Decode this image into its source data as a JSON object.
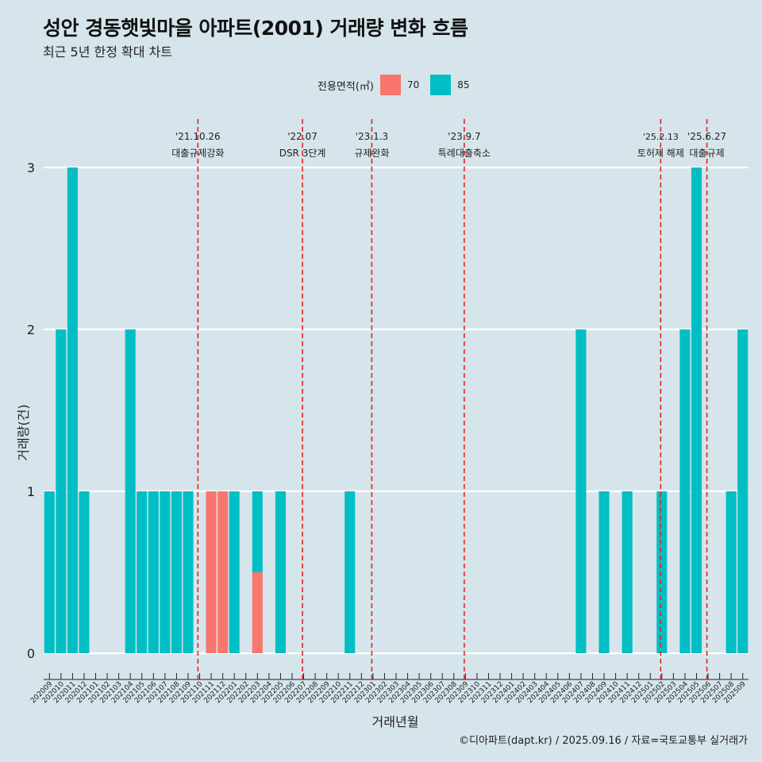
{
  "title": "성안 경동햇빛마을 아파트(2001) 거래량 변화 흐름",
  "subtitle": "최근 5년 한정 확대 차트",
  "legend": {
    "title": "전용면적(㎡)",
    "items": [
      {
        "label": "70",
        "color": "#f8766d"
      },
      {
        "label": "85",
        "color": "#00bfc4"
      }
    ]
  },
  "caption": "©디아파트(dapt.kr) / 2025.09.16 / 자료=국토교통부 실거래가",
  "colors": {
    "background": "#d6e4eb",
    "series70": "#f8766d",
    "series85": "#00bfc4",
    "event_line": "#e8231a"
  },
  "chart_data": {
    "type": "bar",
    "stacked": true,
    "xlabel": "거래년월",
    "ylabel": "거래량(건)",
    "ylim": [
      0,
      3
    ],
    "yticks": [
      0,
      1,
      2,
      3
    ],
    "grid": "horizontal",
    "legend_position": "top",
    "categories": [
      "202009",
      "202010",
      "202011",
      "202012",
      "202101",
      "202102",
      "202103",
      "202104",
      "202105",
      "202106",
      "202107",
      "202108",
      "202109",
      "202110",
      "202111",
      "202112",
      "202201",
      "202202",
      "202203",
      "202204",
      "202205",
      "202206",
      "202207",
      "202208",
      "202209",
      "202210",
      "202211",
      "202212",
      "202301",
      "202302",
      "202303",
      "202304",
      "202305",
      "202306",
      "202307",
      "202308",
      "202309",
      "202310",
      "202311",
      "202312",
      "202401",
      "202402",
      "202403",
      "202404",
      "202405",
      "202406",
      "202407",
      "202408",
      "202409",
      "202410",
      "202411",
      "202412",
      "202501",
      "202502",
      "202503",
      "202504",
      "202505",
      "202506",
      "202507",
      "202508",
      "202509"
    ],
    "series": [
      {
        "name": "70",
        "color": "#f8766d",
        "values": [
          0,
          0,
          0,
          0,
          0,
          0,
          0,
          0,
          0,
          0,
          0,
          0,
          0,
          0,
          1,
          1,
          0,
          0,
          0.5,
          0,
          0,
          0,
          0,
          0,
          0,
          0,
          0,
          0,
          0,
          0,
          0,
          0,
          0,
          0,
          0,
          0,
          0,
          0,
          0,
          0,
          0,
          0,
          0,
          0,
          0,
          0,
          0,
          0,
          0,
          0,
          0,
          0,
          0,
          0,
          0,
          0,
          0,
          0,
          0,
          0,
          0
        ]
      },
      {
        "name": "85",
        "color": "#00bfc4",
        "values": [
          1,
          2,
          3,
          1,
          0,
          0,
          0,
          2,
          1,
          1,
          1,
          1,
          1,
          0,
          0,
          0,
          1,
          0,
          0.5,
          0,
          1,
          0,
          0,
          0,
          0,
          0,
          1,
          0,
          0,
          0,
          0,
          0,
          0,
          0,
          0,
          0,
          0,
          0,
          0,
          0,
          0,
          0,
          0,
          0,
          0,
          0,
          2,
          0,
          1,
          0,
          1,
          0,
          0,
          1,
          0,
          2,
          3,
          0,
          0,
          1,
          2
        ]
      }
    ],
    "events": [
      {
        "date": "'21.10.26",
        "label": "대출규제강화",
        "x_index": 13.35
      },
      {
        "date": "'22.07",
        "label": "DSR 3단계",
        "x_index": 22.4
      },
      {
        "date": "'23.1.3",
        "label": "규제완화",
        "x_index": 28.4
      },
      {
        "date": "'23.9.7",
        "label": "특례대출축소",
        "x_index": 36.4
      },
      {
        "date": "'25.2.13",
        "label": "토허제 해제",
        "x_index": 53.4
      },
      {
        "date": "'25.6.27",
        "label": "대출규제",
        "x_index": 57.4
      }
    ]
  }
}
